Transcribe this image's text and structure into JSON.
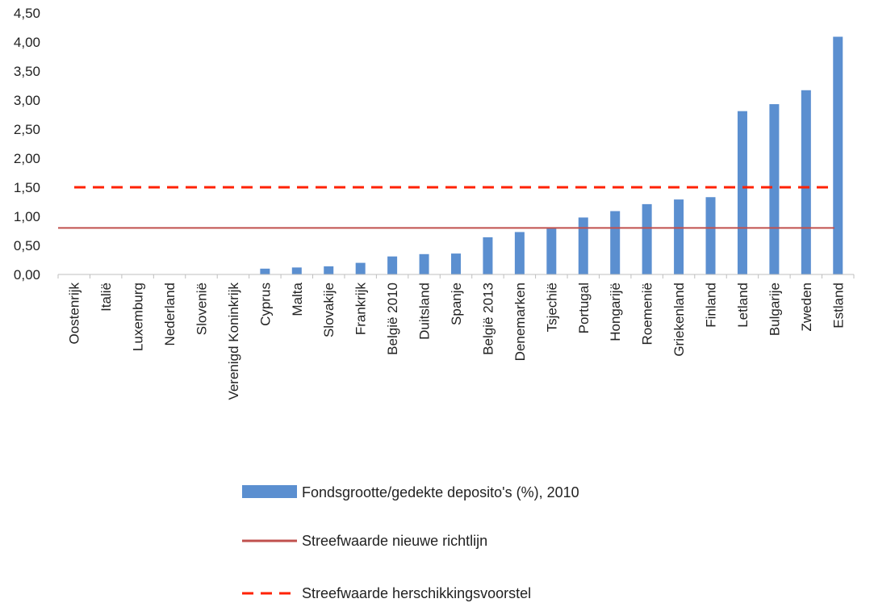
{
  "chart_data": {
    "type": "bar",
    "title": "",
    "xlabel": "",
    "ylabel": "",
    "ylim": [
      0,
      4.5
    ],
    "yticks": [
      "0,00",
      "0,50",
      "1,00",
      "1,50",
      "2,00",
      "2,50",
      "3,00",
      "3,50",
      "4,00",
      "4,50"
    ],
    "categories": [
      "Oostenrijk",
      "Italië",
      "Luxemburg",
      "Nederland",
      "Slovenië",
      "Verenigd Koninkrijk",
      "Cyprus",
      "Malta",
      "Slovakije",
      "Frankrijk",
      "België 2010",
      "Duitsland",
      "Spanje",
      "België 2013",
      "Denemarken",
      "Tsjechië",
      "Portugal",
      "Hongarijë",
      "Roemenië",
      "Griekenland",
      "Finland",
      "Letland",
      "Bulgarije",
      "Zweden",
      "Estland"
    ],
    "series": [
      {
        "name": "Fondsgrootte/gedekte deposito's (%), 2010",
        "type": "bar",
        "color": "#5b8fd0",
        "values": [
          0,
          0,
          0,
          0,
          0,
          0,
          0.1,
          0.12,
          0.14,
          0.2,
          0.31,
          0.35,
          0.36,
          0.64,
          0.73,
          0.81,
          0.98,
          1.09,
          1.21,
          1.29,
          1.33,
          2.81,
          2.93,
          3.17,
          4.09
        ]
      },
      {
        "name": "Streefwaarde nieuwe richtlijn",
        "type": "line",
        "style": "solid",
        "color": "#c0504d",
        "value": 0.8
      },
      {
        "name": "Streefwaarde herschikkingsvoorstel",
        "type": "line",
        "style": "dashed",
        "color": "#ff2200",
        "value": 1.5
      }
    ],
    "grid": false,
    "legend_position": "bottom"
  }
}
